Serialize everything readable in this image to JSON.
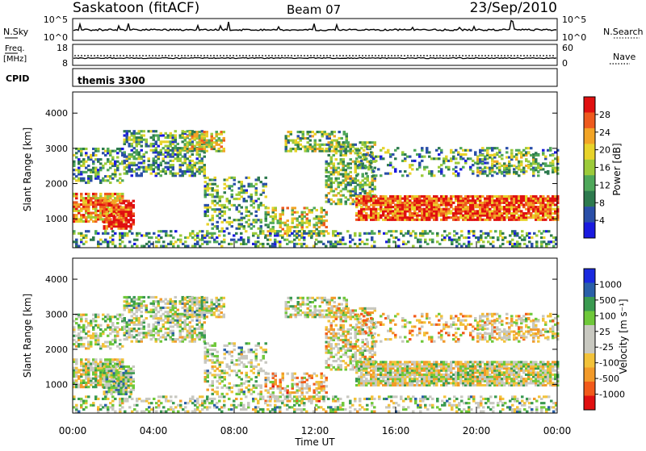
{
  "header": {
    "station": "Saskatoon (fitACF)",
    "beam": "Beam 07",
    "date": "23/Sep/2010"
  },
  "status_rows": {
    "nsky_label": "N.Sky",
    "nsky_ticks": [
      "10^5",
      "10^0"
    ],
    "nsearch_label": "N.Search",
    "freq_label_1": "Freq.",
    "freq_label_2": "[MHz]",
    "freq_ticks": [
      "18",
      "8"
    ],
    "nave_label": "Nave",
    "nave_ticks": [
      "60",
      "0"
    ],
    "cpid_label": "CPID",
    "cpid_value": "themis 3300"
  },
  "colors": {
    "power_scale": [
      "#1a1adf",
      "#2a4fa8",
      "#2d7a4e",
      "#4fa85a",
      "#9ccb3a",
      "#e8d32a",
      "#f2a426",
      "#ee5a1e",
      "#e01010"
    ],
    "velocity_scale": [
      "#e01010",
      "#f25a1a",
      "#f29a2a",
      "#f2c23a",
      "#c8c8c0",
      "#c8c8c0",
      "#6fc83a",
      "#3a9a50",
      "#2a5fa8",
      "#1a2adf"
    ]
  },
  "chart_data": [
    {
      "type": "heatmap",
      "name": "power",
      "ylabel": "Slant Range [km]",
      "yticks": [
        "1000",
        "2000",
        "3000",
        "4000"
      ],
      "ylim": [
        180,
        4600
      ],
      "xlim": [
        0,
        24
      ],
      "colorbar_label": "Power [dB]",
      "colorbar_ticks": [
        "4",
        "8",
        "12",
        "16",
        "20",
        "24",
        "28"
      ]
    },
    {
      "type": "heatmap",
      "name": "velocity",
      "ylabel": "Slant Range [km]",
      "yticks": [
        "1000",
        "2000",
        "3000",
        "4000"
      ],
      "ylim": [
        180,
        4600
      ],
      "xlim": [
        0,
        24
      ],
      "colorbar_label": "Velocity [m s⁻¹]",
      "colorbar_ticks": [
        "1000",
        "500",
        "100",
        "25",
        "-25",
        "-100",
        "-500",
        "-1000"
      ]
    }
  ],
  "xaxis": {
    "label": "Time UT",
    "ticks": [
      "00:00",
      "04:00",
      "08:00",
      "12:00",
      "16:00",
      "20:00",
      "00:00"
    ]
  }
}
